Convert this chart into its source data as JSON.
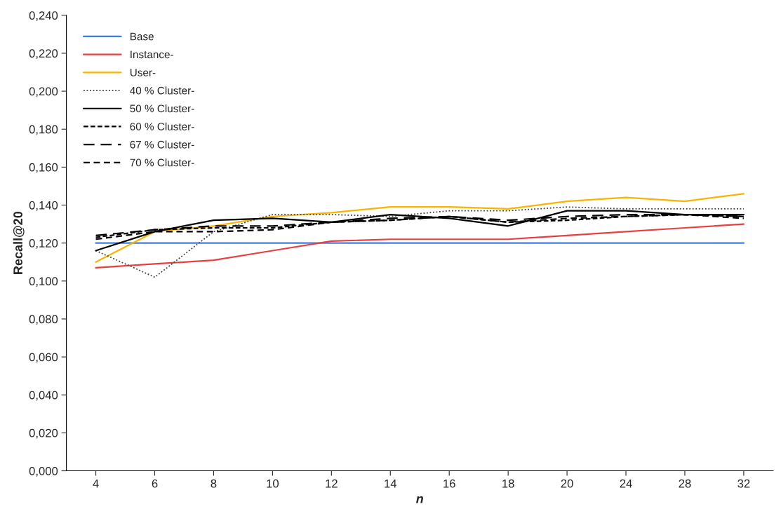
{
  "chart_data": {
    "type": "line",
    "xlabel": "n",
    "ylabel": "Recall@20",
    "categories": [
      "4",
      "6",
      "8",
      "10",
      "12",
      "14",
      "16",
      "18",
      "20",
      "24",
      "28",
      "32"
    ],
    "ylim": [
      0,
      0.24
    ],
    "yticks": [
      {
        "value": 0,
        "label": "0,000"
      },
      {
        "value": 0.02,
        "label": "0,020"
      },
      {
        "value": 0.04,
        "label": "0,040"
      },
      {
        "value": 0.06,
        "label": "0,060"
      },
      {
        "value": 0.08,
        "label": "0,080"
      },
      {
        "value": 0.1,
        "label": "0,100"
      },
      {
        "value": 0.12,
        "label": "0,120"
      },
      {
        "value": 0.14,
        "label": "0,140"
      },
      {
        "value": 0.16,
        "label": "0,160"
      },
      {
        "value": 0.18,
        "label": "0,180"
      },
      {
        "value": 0.2,
        "label": "0,200"
      },
      {
        "value": 0.22,
        "label": "0,220"
      },
      {
        "value": 0.24,
        "label": "0,240"
      }
    ],
    "grid": false,
    "legend": "top left",
    "marker": "none",
    "series": [
      {
        "name": "Base",
        "color": "#3c7ee8",
        "line_style": "solid",
        "values": [
          0.12,
          0.12,
          0.12,
          0.12,
          0.12,
          0.12,
          0.12,
          0.12,
          0.12,
          0.12,
          0.12,
          0.12
        ]
      },
      {
        "name": "Instance-",
        "color": "#e84040",
        "line_style": "solid",
        "values": [
          0.107,
          0.109,
          0.111,
          0.116,
          0.121,
          0.122,
          0.122,
          0.122,
          0.124,
          0.126,
          0.128,
          0.13
        ]
      },
      {
        "name": "User-",
        "color": "#f7b500",
        "line_style": "solid",
        "values": [
          0.11,
          0.126,
          0.129,
          0.134,
          0.136,
          0.139,
          0.139,
          0.138,
          0.142,
          0.144,
          0.142,
          0.146
        ]
      },
      {
        "name": "40 % Cluster-",
        "color": "#404040",
        "line_style": "dotted",
        "values": [
          0.116,
          0.102,
          0.126,
          0.135,
          0.135,
          0.134,
          0.137,
          0.137,
          0.139,
          0.138,
          0.138,
          0.138
        ]
      },
      {
        "name": "50 % Cluster-",
        "color": "#000000",
        "line_style": "solid",
        "values": [
          0.116,
          0.126,
          0.132,
          0.133,
          0.131,
          0.135,
          0.133,
          0.129,
          0.137,
          0.137,
          0.135,
          0.135
        ]
      },
      {
        "name": "60 % Cluster-",
        "color": "#000000",
        "line_style": "dashed",
        "values": [
          0.123,
          0.127,
          0.128,
          0.128,
          0.131,
          0.132,
          0.134,
          0.131,
          0.132,
          0.134,
          0.135,
          0.134
        ]
      },
      {
        "name": "67 % Cluster-",
        "color": "#000000",
        "line_style": "dashed",
        "values": [
          0.124,
          0.127,
          0.129,
          0.129,
          0.131,
          0.133,
          0.134,
          0.132,
          0.134,
          0.135,
          0.135,
          0.134
        ]
      },
      {
        "name": "70 % Cluster-",
        "color": "#000000",
        "line_style": "dashed",
        "values": [
          0.122,
          0.126,
          0.126,
          0.127,
          0.131,
          0.132,
          0.134,
          0.131,
          0.133,
          0.134,
          0.135,
          0.133
        ]
      }
    ]
  }
}
